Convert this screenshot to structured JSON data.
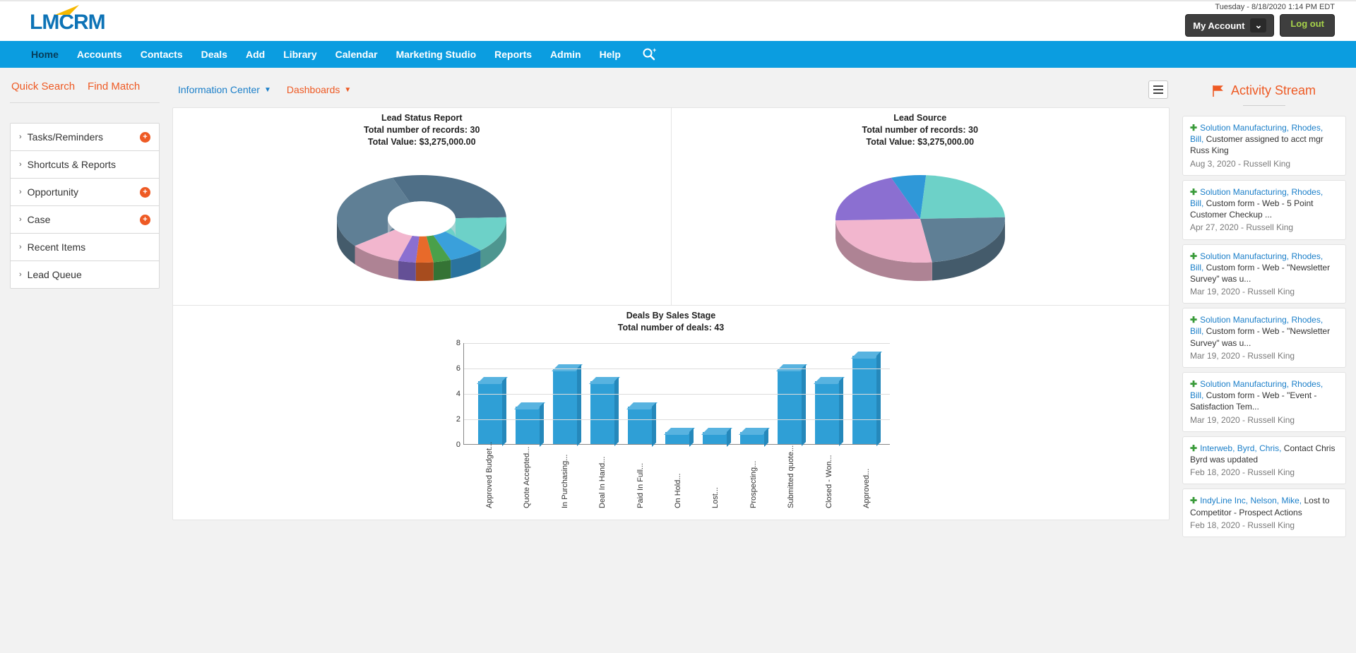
{
  "header": {
    "datetime": "Tuesday  -  8/18/2020 1:14 PM EDT",
    "my_account": "My Account",
    "logout": "Log out",
    "logo_lm": "LM",
    "logo_crm": "CRM"
  },
  "nav": {
    "items": [
      "Home",
      "Accounts",
      "Contacts",
      "Deals",
      "Add",
      "Library",
      "Calendar",
      "Marketing Studio",
      "Reports",
      "Admin",
      "Help"
    ],
    "active_index": 0
  },
  "left": {
    "quick_search": "Quick Search",
    "find_match": "Find Match",
    "accordion": [
      {
        "label": "Tasks/Reminders",
        "plus": true
      },
      {
        "label": "Shortcuts & Reports",
        "plus": false
      },
      {
        "label": "Opportunity",
        "plus": true
      },
      {
        "label": "Case",
        "plus": true
      },
      {
        "label": "Recent Items",
        "plus": false
      },
      {
        "label": "Lead Queue",
        "plus": false
      }
    ]
  },
  "center": {
    "info_center": "Information Center",
    "dashboards": "Dashboards",
    "lead_status": {
      "title": "Lead Status Report",
      "sub1": "Total number of records: 30",
      "sub2": "Total Value: $3,275,000.00",
      "type": "donut3d",
      "slices": [
        {
          "value": 9,
          "color": "#4f6f87"
        },
        {
          "value": 4,
          "color": "#6dd1c8"
        },
        {
          "value": 2,
          "color": "#3aa0db"
        },
        {
          "value": 1,
          "color": "#4aa04a"
        },
        {
          "value": 1,
          "color": "#e86a2a"
        },
        {
          "value": 1,
          "color": "#8b6fd1"
        },
        {
          "value": 3,
          "color": "#f2b6ce"
        },
        {
          "value": 9,
          "color": "#5f7f95"
        }
      ],
      "inner_ratio": 0.4
    },
    "lead_source": {
      "title": "Lead Source",
      "sub1": "Total number of records: 30",
      "sub2": "Total Value: $3,275,000.00",
      "type": "pie3d",
      "slices": [
        {
          "value": 2,
          "color": "#2f98d8"
        },
        {
          "value": 7,
          "color": "#6dd1c8"
        },
        {
          "value": 7,
          "color": "#5f7f95"
        },
        {
          "value": 8,
          "color": "#f2b6ce"
        },
        {
          "value": 6,
          "color": "#8b6fd1"
        }
      ]
    },
    "deals_stage": {
      "title": "Deals By Sales Stage",
      "sub1": "Total number of deals: 43",
      "type": "bar3d",
      "bar_color": "#2f9fd6",
      "bar_top_color": "#58b3e0",
      "bar_side_color": "#2588bb",
      "grid_color": "#dcdcdc",
      "ylim": [
        0,
        8
      ],
      "ytick_step": 2,
      "categories": [
        "Approved Budget...",
        "Quote Accepted...",
        "In Purchasing...",
        "Deal In Hand...",
        "Paid In Full...",
        "On Hold...",
        "Lost...",
        "Prospecting...",
        "Submitted quote...",
        "Closed - Won...",
        "Approved..."
      ],
      "values": [
        5,
        3,
        6,
        5,
        3,
        1,
        1,
        1,
        6,
        5,
        7
      ]
    }
  },
  "activity": {
    "title": "Activity Stream",
    "items": [
      {
        "link": "Solution Manufacturing, Rhodes, Bill,",
        "body": "Customer assigned to acct mgr Russ King",
        "meta": "Aug 3, 2020 - Russell King"
      },
      {
        "link": "Solution Manufacturing, Rhodes, Bill,",
        "body": "Custom form - Web - 5 Point Customer Checkup ...",
        "meta": "Apr 27, 2020 - Russell King"
      },
      {
        "link": "Solution Manufacturing, Rhodes, Bill,",
        "body": "Custom form - Web - \"Newsletter Survey\" was u...",
        "meta": "Mar 19, 2020 - Russell King"
      },
      {
        "link": "Solution Manufacturing, Rhodes, Bill,",
        "body": "Custom form - Web - \"Newsletter Survey\" was u...",
        "meta": "Mar 19, 2020 - Russell King"
      },
      {
        "link": "Solution Manufacturing, Rhodes, Bill,",
        "body": "Custom form - Web - \"Event - Satisfaction Tem...",
        "meta": "Mar 19, 2020 - Russell King"
      },
      {
        "link": "Interweb, Byrd, Chris,",
        "body": "Contact Chris Byrd was updated",
        "meta": "Feb 18, 2020 - Russell King"
      },
      {
        "link": "IndyLine Inc, Nelson, Mike,",
        "body": "Lost to Competitor - Prospect Actions",
        "meta": "Feb 18, 2020 - Russell King"
      }
    ]
  }
}
